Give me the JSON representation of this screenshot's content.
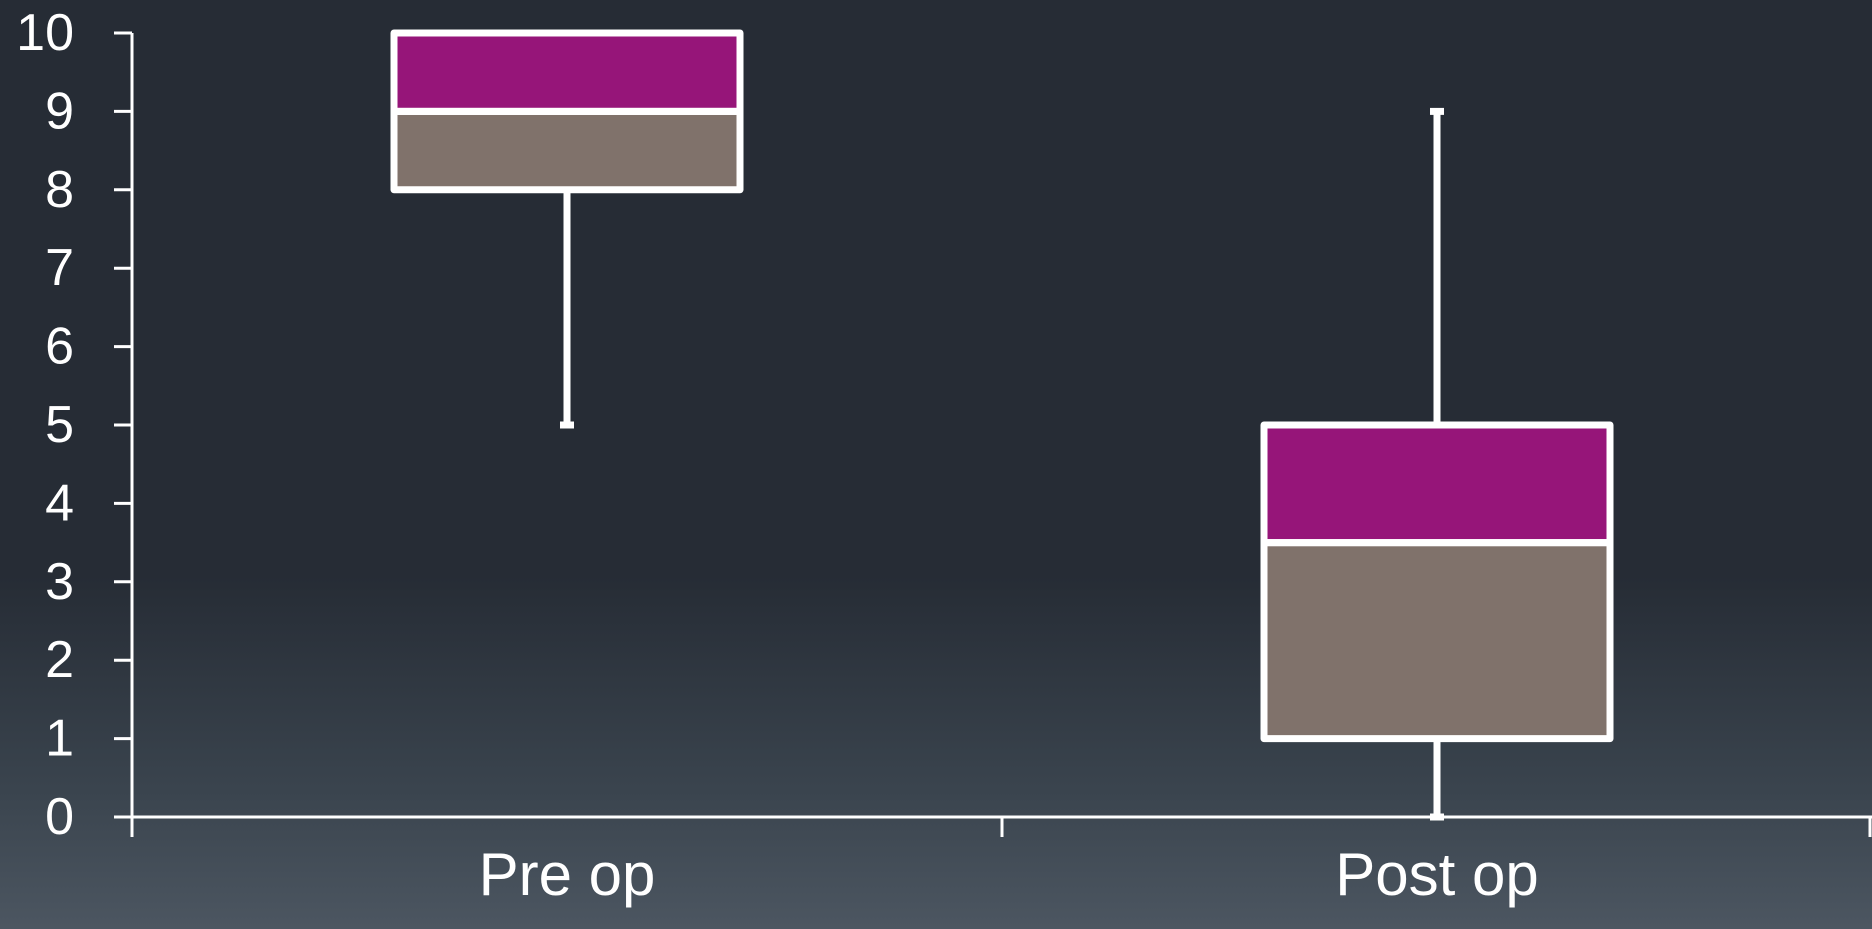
{
  "chart_data": {
    "type": "box",
    "title": "",
    "xlabel": "",
    "ylabel": "",
    "ylim": [
      0,
      10
    ],
    "yticks": [
      "0",
      "1",
      "2",
      "3",
      "4",
      "5",
      "6",
      "7",
      "8",
      "9",
      "10"
    ],
    "categories": [
      "Pre op",
      "Post op"
    ],
    "boxes": [
      {
        "category": "Pre op",
        "min": 5,
        "q1": 8,
        "median": 9,
        "q3": 10,
        "max": 10
      },
      {
        "category": "Post op",
        "min": 0,
        "q1": 1,
        "median": 3.5,
        "q3": 5,
        "max": 9
      }
    ],
    "colors": {
      "lower_box": "#80726b",
      "upper_box": "#961579",
      "stroke": "#ffffff",
      "axis": "#ffffff"
    },
    "grid": false,
    "legend": "none"
  }
}
